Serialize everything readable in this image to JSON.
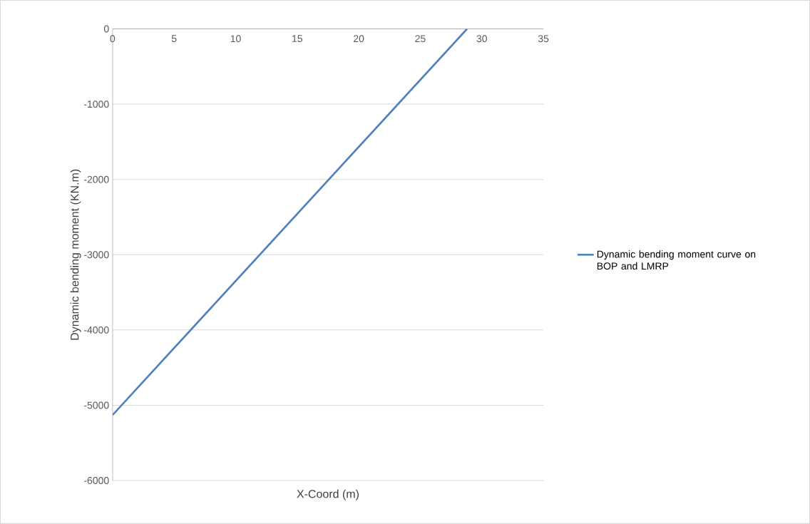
{
  "chart_data": {
    "type": "line",
    "xlabel": "X-Coord (m)",
    "ylabel": "Dynamic bending moment (KN.m)",
    "series": [
      {
        "name": "Dynamic bending moment curve on BOP and LMRP",
        "color": "#4f81bd",
        "x": [
          0,
          28.8
        ],
        "values": [
          -5130,
          0
        ]
      }
    ],
    "xlim": [
      0,
      35
    ],
    "ylim": [
      -6000,
      0
    ],
    "xticks": [
      0,
      5,
      10,
      15,
      20,
      25,
      30,
      35
    ],
    "yticks": [
      -6000,
      -5000,
      -4000,
      -3000,
      -2000,
      -1000,
      0
    ],
    "grid": "y",
    "legend": "right",
    "marker": "none",
    "line_style": "solid"
  }
}
